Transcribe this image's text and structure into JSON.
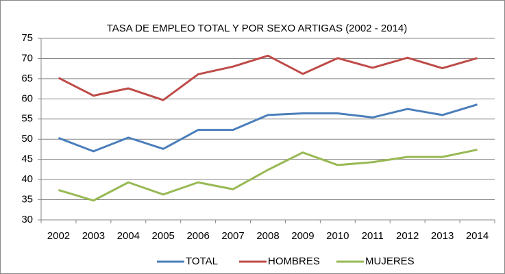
{
  "chart_data": {
    "type": "line",
    "title": "TASA DE EMPLEO TOTAL Y POR SEXO  ARTIGAS (2002 - 2014)",
    "categories": [
      "2002",
      "2003",
      "2004",
      "2005",
      "2006",
      "2007",
      "2008",
      "2009",
      "2010",
      "2011",
      "2012",
      "2013",
      "2014"
    ],
    "series": [
      {
        "name": "TOTAL",
        "color": "#4a7ebb",
        "values": [
          50.3,
          47,
          50.4,
          47.6,
          52.3,
          52.3,
          56,
          56.4,
          56.4,
          55.4,
          57.5,
          56,
          58.6
        ]
      },
      {
        "name": "HOMBRES",
        "color": "#be4b48",
        "values": [
          65.2,
          60.8,
          62.6,
          59.7,
          66.1,
          68,
          70.7,
          66.2,
          70.1,
          67.7,
          70.2,
          67.6,
          70.1
        ]
      },
      {
        "name": "MUJERES",
        "color": "#98b954",
        "values": [
          37.4,
          34.8,
          39.3,
          36.3,
          39.3,
          37.6,
          42.4,
          46.7,
          43.6,
          44.3,
          45.6,
          45.6,
          47.4
        ]
      }
    ],
    "ylim": [
      30,
      75
    ],
    "yticks": [
      30,
      35,
      40,
      45,
      50,
      55,
      60,
      65,
      70,
      75
    ],
    "grid": true,
    "legend": "bottom"
  }
}
